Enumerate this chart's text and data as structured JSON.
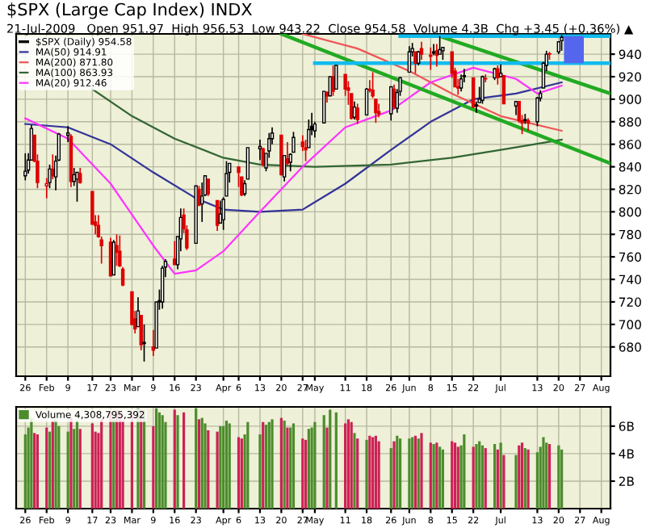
{
  "chart_data": [
    {
      "type": "candlestick",
      "title": "$SPX (Large Cap Index) INDX",
      "subtitle": "21-Jul-2009   Open 951.97  High 956.53  Low 943.22  Close 954.58  Volume 4.3B  Chg +3.45 (+0.36%) ▲",
      "x": [
        "2009-01-26",
        "2009-01-27",
        "2009-01-28",
        "2009-01-29",
        "2009-01-30",
        "2009-02-02",
        "2009-02-03",
        "2009-02-04",
        "2009-02-05",
        "2009-02-06",
        "2009-02-09",
        "2009-02-10",
        "2009-02-11",
        "2009-02-12",
        "2009-02-13",
        "2009-02-17",
        "2009-02-18",
        "2009-02-19",
        "2009-02-20",
        "2009-02-23",
        "2009-02-24",
        "2009-02-25",
        "2009-02-26",
        "2009-02-27",
        "2009-03-02",
        "2009-03-03",
        "2009-03-04",
        "2009-03-05",
        "2009-03-06",
        "2009-03-09",
        "2009-03-10",
        "2009-03-11",
        "2009-03-12",
        "2009-03-13",
        "2009-03-16",
        "2009-03-17",
        "2009-03-18",
        "2009-03-19",
        "2009-03-20",
        "2009-03-23",
        "2009-03-24",
        "2009-03-25",
        "2009-03-26",
        "2009-03-27",
        "2009-03-30",
        "2009-03-31",
        "2009-04-01",
        "2009-04-02",
        "2009-04-03",
        "2009-04-06",
        "2009-04-07",
        "2009-04-08",
        "2009-04-09",
        "2009-04-13",
        "2009-04-14",
        "2009-04-15",
        "2009-04-16",
        "2009-04-17",
        "2009-04-20",
        "2009-04-21",
        "2009-04-22",
        "2009-04-23",
        "2009-04-24",
        "2009-04-27",
        "2009-04-28",
        "2009-04-29",
        "2009-04-30",
        "2009-05-01",
        "2009-05-04",
        "2009-05-05",
        "2009-05-06",
        "2009-05-07",
        "2009-05-08",
        "2009-05-11",
        "2009-05-12",
        "2009-05-13",
        "2009-05-14",
        "2009-05-15",
        "2009-05-18",
        "2009-05-19",
        "2009-05-20",
        "2009-05-21",
        "2009-05-22",
        "2009-05-26",
        "2009-05-27",
        "2009-05-28",
        "2009-05-29",
        "2009-06-01",
        "2009-06-02",
        "2009-06-03",
        "2009-06-04",
        "2009-06-05",
        "2009-06-08",
        "2009-06-09",
        "2009-06-10",
        "2009-06-11",
        "2009-06-12",
        "2009-06-15",
        "2009-06-16",
        "2009-06-17",
        "2009-06-18",
        "2009-06-19",
        "2009-06-22",
        "2009-06-23",
        "2009-06-24",
        "2009-06-25",
        "2009-06-26",
        "2009-06-29",
        "2009-06-30",
        "2009-07-01",
        "2009-07-02",
        "2009-07-06",
        "2009-07-07",
        "2009-07-08",
        "2009-07-09",
        "2009-07-10",
        "2009-07-13",
        "2009-07-14",
        "2009-07-15",
        "2009-07-16",
        "2009-07-17",
        "2009-07-20",
        "2009-07-21"
      ],
      "series": [
        {
          "type": "candlestick",
          "name": "$SPX (Daily) 954.58",
          "color": "#000000",
          "ohlc": [
            [
              832,
              852,
              828,
              836
            ],
            [
              837,
              852,
              834,
              846
            ],
            [
              846,
              877,
              846,
              874
            ],
            [
              868,
              868,
              844,
              845
            ],
            [
              845,
              851,
              821,
              826
            ],
            [
              823,
              830,
              812,
              825
            ],
            [
              826,
              842,
              821,
              838
            ],
            [
              838,
              851,
              829,
              832
            ],
            [
              831,
              850,
              819,
              845
            ],
            [
              846,
              870,
              845,
              869
            ],
            [
              868,
              876,
              862,
              870
            ],
            [
              867,
              869,
              822,
              827
            ],
            [
              827,
              839,
              823,
              833
            ],
            [
              829,
              835,
              809,
              835
            ],
            [
              834,
              839,
              825,
              826
            ],
            [
              818,
              818,
              789,
              789
            ],
            [
              791,
              797,
              780,
              788
            ],
            [
              788,
              797,
              777,
              778
            ],
            [
              775,
              778,
              754,
              770
            ],
            [
              773,
              777,
              743,
              743
            ],
            [
              744,
              775,
              744,
              773
            ],
            [
              770,
              780,
              752,
              764
            ],
            [
              765,
              779,
              751,
              752
            ],
            [
              749,
              751,
              734,
              735
            ],
            [
              729,
              729,
              699,
              700
            ],
            [
              705,
              712,
              692,
              696
            ],
            [
              698,
              724,
              698,
              712
            ],
            [
              708,
              708,
              677,
              682
            ],
            [
              684,
              700,
              667,
              683
            ],
            [
              680,
              695,
              672,
              677
            ],
            [
              679,
              720,
              679,
              720
            ],
            [
              720,
              731,
              713,
              721
            ],
            [
              720,
              752,
              714,
              750
            ],
            [
              751,
              758,
              742,
              756
            ],
            [
              758,
              774,
              753,
              753
            ],
            [
              753,
              778,
              749,
              778
            ],
            [
              776,
              803,
              765,
              795
            ],
            [
              797,
              803,
              781,
              785
            ],
            [
              784,
              788,
              766,
              768
            ],
            [
              772,
              823,
              772,
              823
            ],
            [
              820,
              823,
              805,
              806
            ],
            [
              807,
              826,
              791,
              814
            ],
            [
              815,
              832,
              814,
              832
            ],
            [
              829,
              829,
              814,
              816
            ],
            [
              810,
              810,
              783,
              788
            ],
            [
              790,
              810,
              790,
              798
            ],
            [
              793,
              813,
              784,
              811
            ],
            [
              814,
              845,
              814,
              834
            ],
            [
              835,
              843,
              826,
              843
            ],
            [
              840,
              840,
              822,
              835
            ],
            [
              831,
              831,
              814,
              815
            ],
            [
              816,
              828,
              814,
              825
            ],
            [
              829,
              857,
              829,
              857
            ],
            [
              856,
              864,
              846,
              858
            ],
            [
              856,
              857,
              840,
              842
            ],
            [
              839,
              852,
              836,
              852
            ],
            [
              854,
              870,
              848,
              865
            ],
            [
              865,
              875,
              860,
              870
            ],
            [
              868,
              868,
              832,
              833
            ],
            [
              831,
              850,
              827,
              850
            ],
            [
              847,
              862,
              841,
              843
            ],
            [
              844,
              852,
              836,
              851
            ],
            [
              853,
              871,
              853,
              866
            ],
            [
              862,
              868,
              854,
              858
            ],
            [
              857,
              864,
              845,
              855
            ],
            [
              857,
              882,
              857,
              873
            ],
            [
              876,
              888,
              868,
              873
            ],
            [
              872,
              880,
              866,
              878
            ],
            [
              879,
              907,
              879,
              907
            ],
            [
              906,
              907,
              897,
              903
            ],
            [
              903,
              920,
              903,
              920
            ],
            [
              920,
              930,
              903,
              907
            ],
            [
              909,
              930,
              909,
              930
            ],
            [
              922,
              922,
              903,
              909
            ],
            [
              910,
              916,
              895,
              908
            ],
            [
              905,
              905,
              882,
              883
            ],
            [
              884,
              898,
              882,
              893
            ],
            [
              892,
              896,
              878,
              882
            ],
            [
              886,
              910,
              886,
              909
            ],
            [
              909,
              917,
              906,
              908
            ],
            [
              908,
              924,
              901,
              903
            ],
            [
              900,
              900,
              879,
              888
            ],
            [
              889,
              896,
              884,
              887
            ],
            [
              887,
              911,
              881,
              911
            ],
            [
              909,
              913,
              891,
              893
            ],
            [
              892,
              909,
              888,
              906
            ],
            [
              907,
              920,
              903,
              919
            ],
            [
              924,
              947,
              924,
              942
            ],
            [
              942,
              950,
              938,
              945
            ],
            [
              942,
              942,
              923,
              932
            ],
            [
              932,
              943,
              930,
              942
            ],
            [
              945,
              951,
              935,
              940
            ],
            [
              938,
              946,
              926,
              939
            ],
            [
              941,
              949,
              939,
              942
            ],
            [
              943,
              949,
              929,
              939
            ],
            [
              940,
              956,
              940,
              944
            ],
            [
              943,
              946,
              935,
              946
            ],
            [
              942,
              942,
              919,
              923
            ],
            [
              925,
              928,
              911,
              911
            ],
            [
              911,
              918,
              904,
              910
            ],
            [
              910,
              922,
              907,
              918
            ],
            [
              920,
              927,
              915,
              921
            ],
            [
              919,
              919,
              892,
              893
            ],
            [
              894,
              898,
              888,
              895
            ],
            [
              897,
              911,
              897,
              900
            ],
            [
              899,
              921,
              896,
              920
            ],
            [
              918,
              922,
              915,
              918
            ],
            [
              919,
              928,
              917,
              927
            ],
            [
              927,
              930,
              913,
              919
            ],
            [
              920,
              931,
              920,
              923
            ],
            [
              921,
              921,
              896,
              896
            ],
            [
              894,
              898,
              886,
              898
            ],
            [
              898,
              898,
              879,
              881
            ],
            [
              881,
              886,
              869,
              879
            ],
            [
              881,
              887,
              878,
              882
            ],
            [
              881,
              883,
              872,
              879
            ],
            [
              880,
              902,
              876,
              901
            ],
            [
              901,
              908,
              898,
              905
            ],
            [
              910,
              933,
              910,
              932
            ],
            [
              930,
              943,
              925,
              940
            ],
            [
              940,
              942,
              935,
              940
            ],
            [
              942,
              951,
              940,
              951
            ],
            [
              952,
              957,
              943,
              955
            ]
          ],
          "colors": [
            "#000000",
            "#000000",
            "#000000",
            "#dd0000",
            "#dd0000",
            "#dd0000",
            "#000000",
            "#dd0000",
            "#000000",
            "#000000",
            "#000000",
            "#dd0000",
            "#000000",
            "#000000",
            "#dd0000",
            "#dd0000",
            "#dd0000",
            "#dd0000",
            "#dd0000",
            "#dd0000",
            "#000000",
            "#dd0000",
            "#dd0000",
            "#dd0000",
            "#dd0000",
            "#dd0000",
            "#000000",
            "#dd0000",
            "#000000",
            "#dd0000",
            "#000000",
            "#000000",
            "#000000",
            "#000000",
            "#dd0000",
            "#000000",
            "#000000",
            "#dd0000",
            "#dd0000",
            "#000000",
            "#dd0000",
            "#000000",
            "#000000",
            "#dd0000",
            "#dd0000",
            "#000000",
            "#000000",
            "#000000",
            "#000000",
            "#dd0000",
            "#dd0000",
            "#000000",
            "#000000",
            "#000000",
            "#dd0000",
            "#000000",
            "#000000",
            "#000000",
            "#dd0000",
            "#000000",
            "#dd0000",
            "#000000",
            "#000000",
            "#dd0000",
            "#dd0000",
            "#000000",
            "#000000",
            "#000000",
            "#000000",
            "#dd0000",
            "#000000",
            "#dd0000",
            "#000000",
            "#dd0000",
            "#dd0000",
            "#dd0000",
            "#000000",
            "#dd0000",
            "#000000",
            "#dd0000",
            "#dd0000",
            "#dd0000",
            "#dd0000",
            "#000000",
            "#dd0000",
            "#000000",
            "#000000",
            "#000000",
            "#000000",
            "#dd0000",
            "#000000",
            "#dd0000",
            "#dd0000",
            "#000000",
            "#dd0000",
            "#000000",
            "#000000",
            "#dd0000",
            "#dd0000",
            "#dd0000",
            "#000000",
            "#000000",
            "#dd0000",
            "#000000",
            "#000000",
            "#000000",
            "#dd0000",
            "#000000",
            "#dd0000",
            "#000000",
            "#dd0000",
            "#000000",
            "#dd0000",
            "#dd0000",
            "#000000",
            "#dd0000",
            "#000000",
            "#000000",
            "#000000",
            "#000000",
            "#dd0000",
            "#000000",
            "#000000"
          ]
        },
        {
          "type": "line",
          "name": "MA(50) 914.91",
          "color": "#333399",
          "x": [
            "2009-01-26",
            "2009-02-09",
            "2009-02-23",
            "2009-03-09",
            "2009-03-23",
            "2009-04-01",
            "2009-04-13",
            "2009-04-27",
            "2009-05-11",
            "2009-05-26",
            "2009-06-08",
            "2009-06-22",
            "2009-07-06",
            "2009-07-21"
          ],
          "values": [
            878,
            875,
            860,
            835,
            812,
            802,
            800,
            802,
            825,
            855,
            880,
            900,
            905,
            915
          ]
        },
        {
          "type": "line",
          "name": "MA(200) 871.80",
          "color": "#ee5555",
          "x": [
            "2009-04-27",
            "2009-05-15",
            "2009-06-01",
            "2009-06-15",
            "2009-07-01",
            "2009-07-21"
          ],
          "values": [
            958,
            945,
            925,
            905,
            885,
            872
          ]
        },
        {
          "type": "line",
          "name": "MA(100) 863.93",
          "color": "#336633",
          "x": [
            "2009-02-17",
            "2009-03-02",
            "2009-03-16",
            "2009-04-01",
            "2009-04-13",
            "2009-05-01",
            "2009-05-26",
            "2009-06-15",
            "2009-07-01",
            "2009-07-21"
          ],
          "values": [
            909,
            885,
            865,
            848,
            842,
            840,
            842,
            848,
            855,
            864
          ]
        },
        {
          "type": "line",
          "name": "MA(20) 912.46",
          "color": "#ff33ff",
          "x": [
            "2009-01-26",
            "2009-02-09",
            "2009-02-23",
            "2009-03-09",
            "2009-03-16",
            "2009-03-23",
            "2009-04-01",
            "2009-04-13",
            "2009-04-27",
            "2009-05-11",
            "2009-05-26",
            "2009-06-08",
            "2009-06-22",
            "2009-07-06",
            "2009-07-13",
            "2009-07-21"
          ],
          "values": [
            883,
            865,
            825,
            770,
            745,
            748,
            765,
            800,
            840,
            875,
            890,
            915,
            928,
            918,
            905,
            912
          ]
        },
        {
          "type": "line",
          "color": "#22aa22",
          "x": [
            "2009-04-20",
            "2009-08-06"
          ],
          "values": [
            958,
            843
          ]
        },
        {
          "type": "line",
          "color": "#22aa22",
          "x": [
            "2009-06-12",
            "2009-08-06"
          ],
          "values": [
            955,
            905
          ]
        },
        {
          "type": "line",
          "color": "#11bbee",
          "x": [
            "2009-05-29",
            "2009-08-06"
          ],
          "values": [
            956,
            956
          ]
        },
        {
          "type": "line",
          "color": "#11bbee",
          "x": [
            "2009-05-01",
            "2009-08-06"
          ],
          "values": [
            932,
            932
          ]
        },
        {
          "type": "bar",
          "color": "#5566ee",
          "x": [
            "2009-07-25"
          ],
          "base": [
            932
          ],
          "values": [
            24
          ]
        }
      ],
      "xlim": [
        "2009-01-23",
        "2009-08-06"
      ],
      "ylim": [
        654,
        958
      ],
      "xticks": [
        {
          "value": "2009-01-26",
          "label": "26"
        },
        {
          "value": "2009-02-02",
          "label": "Feb"
        },
        {
          "value": "2009-02-09",
          "label": "9"
        },
        {
          "value": "2009-02-17",
          "label": "17"
        },
        {
          "value": "2009-02-23",
          "label": "23"
        },
        {
          "value": "2009-03-02",
          "label": "Mar"
        },
        {
          "value": "2009-03-09",
          "label": "9"
        },
        {
          "value": "2009-03-16",
          "label": "16"
        },
        {
          "value": "2009-03-23",
          "label": "23"
        },
        {
          "value": "2009-04-01",
          "label": "Apr"
        },
        {
          "value": "2009-04-06",
          "label": "6"
        },
        {
          "value": "2009-04-13",
          "label": "13"
        },
        {
          "value": "2009-04-20",
          "label": "20"
        },
        {
          "value": "2009-04-27",
          "label": "27"
        },
        {
          "value": "2009-05-01",
          "label": "May"
        },
        {
          "value": "2009-05-11",
          "label": "11"
        },
        {
          "value": "2009-05-18",
          "label": "18"
        },
        {
          "value": "2009-05-26",
          "label": "26"
        },
        {
          "value": "2009-06-01",
          "label": "Jun"
        },
        {
          "value": "2009-06-08",
          "label": "8"
        },
        {
          "value": "2009-06-15",
          "label": "15"
        },
        {
          "value": "2009-06-22",
          "label": "22"
        },
        {
          "value": "2009-07-01",
          "label": "Jul"
        },
        {
          "value": "2009-07-13",
          "label": "13"
        },
        {
          "value": "2009-07-20",
          "label": "20"
        },
        {
          "value": "2009-07-27",
          "label": "27"
        },
        {
          "value": "2009-08-03",
          "label": "Aug"
        }
      ],
      "yticks": [
        680,
        700,
        720,
        740,
        760,
        780,
        800,
        820,
        840,
        860,
        880,
        900,
        920,
        940
      ],
      "grid": true,
      "legend": "top left"
    },
    {
      "type": "bar",
      "x": [
        "2009-01-26",
        "2009-01-27",
        "2009-01-28",
        "2009-01-29",
        "2009-01-30",
        "2009-02-02",
        "2009-02-03",
        "2009-02-04",
        "2009-02-05",
        "2009-02-06",
        "2009-02-09",
        "2009-02-10",
        "2009-02-11",
        "2009-02-12",
        "2009-02-13",
        "2009-02-17",
        "2009-02-18",
        "2009-02-19",
        "2009-02-20",
        "2009-02-23",
        "2009-02-24",
        "2009-02-25",
        "2009-02-26",
        "2009-02-27",
        "2009-03-02",
        "2009-03-03",
        "2009-03-04",
        "2009-03-05",
        "2009-03-06",
        "2009-03-09",
        "2009-03-10",
        "2009-03-11",
        "2009-03-12",
        "2009-03-13",
        "2009-03-16",
        "2009-03-17",
        "2009-03-18",
        "2009-03-19",
        "2009-03-20",
        "2009-03-23",
        "2009-03-24",
        "2009-03-25",
        "2009-03-26",
        "2009-03-27",
        "2009-03-30",
        "2009-03-31",
        "2009-04-01",
        "2009-04-02",
        "2009-04-03",
        "2009-04-06",
        "2009-04-07",
        "2009-04-08",
        "2009-04-09",
        "2009-04-13",
        "2009-04-14",
        "2009-04-15",
        "2009-04-16",
        "2009-04-17",
        "2009-04-20",
        "2009-04-21",
        "2009-04-22",
        "2009-04-23",
        "2009-04-24",
        "2009-04-27",
        "2009-04-28",
        "2009-04-29",
        "2009-04-30",
        "2009-05-01",
        "2009-05-04",
        "2009-05-05",
        "2009-05-06",
        "2009-05-07",
        "2009-05-08",
        "2009-05-11",
        "2009-05-12",
        "2009-05-13",
        "2009-05-14",
        "2009-05-15",
        "2009-05-18",
        "2009-05-19",
        "2009-05-20",
        "2009-05-21",
        "2009-05-22",
        "2009-05-26",
        "2009-05-27",
        "2009-05-28",
        "2009-05-29",
        "2009-06-01",
        "2009-06-02",
        "2009-06-03",
        "2009-06-04",
        "2009-06-05",
        "2009-06-08",
        "2009-06-09",
        "2009-06-10",
        "2009-06-11",
        "2009-06-12",
        "2009-06-15",
        "2009-06-16",
        "2009-06-17",
        "2009-06-18",
        "2009-06-19",
        "2009-06-22",
        "2009-06-23",
        "2009-06-24",
        "2009-06-25",
        "2009-06-26",
        "2009-06-29",
        "2009-06-30",
        "2009-07-01",
        "2009-07-02",
        "2009-07-06",
        "2009-07-07",
        "2009-07-08",
        "2009-07-09",
        "2009-07-10",
        "2009-07-13",
        "2009-07-14",
        "2009-07-15",
        "2009-07-16",
        "2009-07-17",
        "2009-07-20",
        "2009-07-21"
      ],
      "series": [
        {
          "name": "Volume 4,308,795,392",
          "color": "#4c8c2c",
          "values": [
            5.4,
            5.9,
            6.6,
            5.5,
            5.4,
            5.9,
            5.6,
            6.4,
            6.5,
            6.0,
            5.6,
            6.6,
            5.8,
            6.4,
            5.8,
            6.2,
            5.6,
            5.5,
            6.5,
            7.0,
            6.6,
            7.2,
            6.9,
            6.4,
            7.0,
            null,
            7.3,
            7.2,
            7.2,
            6.0,
            7.3,
            7.0,
            6.8,
            6.3,
            7.2,
            6.8,
            null,
            7.0,
            null,
            7.3,
            6.5,
            6.6,
            6.2,
            5.7,
            5.6,
            6.0,
            6.0,
            6.4,
            6.2,
            5.2,
            5.1,
            5.4,
            6.3,
            5.4,
            6.3,
            6.1,
            6.3,
            6.5,
            6.6,
            6.4,
            5.9,
            5.9,
            6.2,
            5.1,
            5.0,
            5.8,
            5.9,
            6.3,
            6.8,
            5.9,
            7.2,
            null,
            7.0,
            6.2,
            6.5,
            6.3,
            5.5,
            5.1,
            5.0,
            5.3,
            5.2,
            5.3,
            4.9,
            4.4,
            4.9,
            5.3,
            5.1,
            5.1,
            5.2,
            5.3,
            5.1,
            5.5,
            4.8,
            4.7,
            4.8,
            4.5,
            4.3,
            4.9,
            4.8,
            4.5,
            4.6,
            5.4,
            4.5,
            4.7,
            4.9,
            4.6,
            4.4,
            4.7,
            4.3,
            4.8,
            3.9,
            3.9,
            4.6,
            4.8,
            4.4,
            4.3,
            4.1,
            4.5,
            5.2,
            4.8,
            4.7,
            4.6,
            4.3
          ],
          "colors": [
            "#4c8c2c",
            "#4c8c2c",
            "#4c8c2c",
            "#cc2255",
            "#cc2255",
            "#cc2255",
            "#4c8c2c",
            "#cc2255",
            "#4c8c2c",
            "#4c8c2c",
            "#4c8c2c",
            "#cc2255",
            "#4c8c2c",
            "#4c8c2c",
            "#cc2255",
            "#cc2255",
            "#cc2255",
            "#cc2255",
            "#cc2255",
            "#cc2255",
            "#4c8c2c",
            "#cc2255",
            "#cc2255",
            "#cc2255",
            "#cc2255",
            "#cc2255",
            "#4c8c2c",
            "#cc2255",
            "#4c8c2c",
            "#cc2255",
            "#4c8c2c",
            "#4c8c2c",
            "#4c8c2c",
            "#4c8c2c",
            "#cc2255",
            "#4c8c2c",
            "#4c8c2c",
            "#cc2255",
            "#cc2255",
            "#4c8c2c",
            "#cc2255",
            "#4c8c2c",
            "#4c8c2c",
            "#cc2255",
            "#cc2255",
            "#4c8c2c",
            "#4c8c2c",
            "#4c8c2c",
            "#4c8c2c",
            "#cc2255",
            "#cc2255",
            "#4c8c2c",
            "#4c8c2c",
            "#4c8c2c",
            "#cc2255",
            "#4c8c2c",
            "#4c8c2c",
            "#4c8c2c",
            "#cc2255",
            "#4c8c2c",
            "#cc2255",
            "#4c8c2c",
            "#4c8c2c",
            "#cc2255",
            "#cc2255",
            "#4c8c2c",
            "#4c8c2c",
            "#4c8c2c",
            "#4c8c2c",
            "#cc2255",
            "#4c8c2c",
            "#cc2255",
            "#4c8c2c",
            "#cc2255",
            "#cc2255",
            "#cc2255",
            "#4c8c2c",
            "#cc2255",
            "#4c8c2c",
            "#cc2255",
            "#cc2255",
            "#cc2255",
            "#cc2255",
            "#4c8c2c",
            "#cc2255",
            "#4c8c2c",
            "#4c8c2c",
            "#4c8c2c",
            "#4c8c2c",
            "#cc2255",
            "#4c8c2c",
            "#cc2255",
            "#cc2255",
            "#4c8c2c",
            "#cc2255",
            "#4c8c2c",
            "#4c8c2c",
            "#cc2255",
            "#cc2255",
            "#cc2255",
            "#4c8c2c",
            "#4c8c2c",
            "#cc2255",
            "#4c8c2c",
            "#4c8c2c",
            "#4c8c2c",
            "#cc2255",
            "#4c8c2c",
            "#cc2255",
            "#4c8c2c",
            "#cc2255",
            "#4c8c2c",
            "#cc2255",
            "#cc2255",
            "#4c8c2c",
            "#cc2255",
            "#4c8c2c",
            "#4c8c2c",
            "#4c8c2c",
            "#4c8c2c",
            "#cc2255",
            "#4c8c2c",
            "#4c8c2c"
          ]
        }
      ],
      "xlim": [
        "2009-01-23",
        "2009-08-06"
      ],
      "ylim": [
        0,
        7.4
      ],
      "xticks": [
        {
          "value": "2009-01-26",
          "label": "26"
        },
        {
          "value": "2009-02-02",
          "label": "Feb"
        },
        {
          "value": "2009-02-09",
          "label": "9"
        },
        {
          "value": "2009-02-17",
          "label": "17"
        },
        {
          "value": "2009-02-23",
          "label": "23"
        },
        {
          "value": "2009-03-02",
          "label": "Mar"
        },
        {
          "value": "2009-03-09",
          "label": "9"
        },
        {
          "value": "2009-03-16",
          "label": "16"
        },
        {
          "value": "2009-03-23",
          "label": "23"
        },
        {
          "value": "2009-04-01",
          "label": "Apr"
        },
        {
          "value": "2009-04-06",
          "label": "6"
        },
        {
          "value": "2009-04-13",
          "label": "13"
        },
        {
          "value": "2009-04-20",
          "label": "20"
        },
        {
          "value": "2009-04-27",
          "label": "27"
        },
        {
          "value": "2009-05-01",
          "label": "May"
        },
        {
          "value": "2009-05-11",
          "label": "11"
        },
        {
          "value": "2009-05-18",
          "label": "18"
        },
        {
          "value": "2009-05-26",
          "label": "26"
        },
        {
          "value": "2009-06-01",
          "label": "Jun"
        },
        {
          "value": "2009-06-08",
          "label": "8"
        },
        {
          "value": "2009-06-15",
          "label": "15"
        },
        {
          "value": "2009-06-22",
          "label": "22"
        },
        {
          "value": "2009-07-01",
          "label": "Jul"
        },
        {
          "value": "2009-07-13",
          "label": "13"
        },
        {
          "value": "2009-07-20",
          "label": "20"
        },
        {
          "value": "2009-07-27",
          "label": "27"
        },
        {
          "value": "2009-08-03",
          "label": "Aug"
        }
      ],
      "yticks": [
        {
          "value": 2,
          "label": "2B"
        },
        {
          "value": 4,
          "label": "4B"
        },
        {
          "value": 6,
          "label": "6B"
        }
      ],
      "grid": true,
      "legend": "top left"
    }
  ]
}
